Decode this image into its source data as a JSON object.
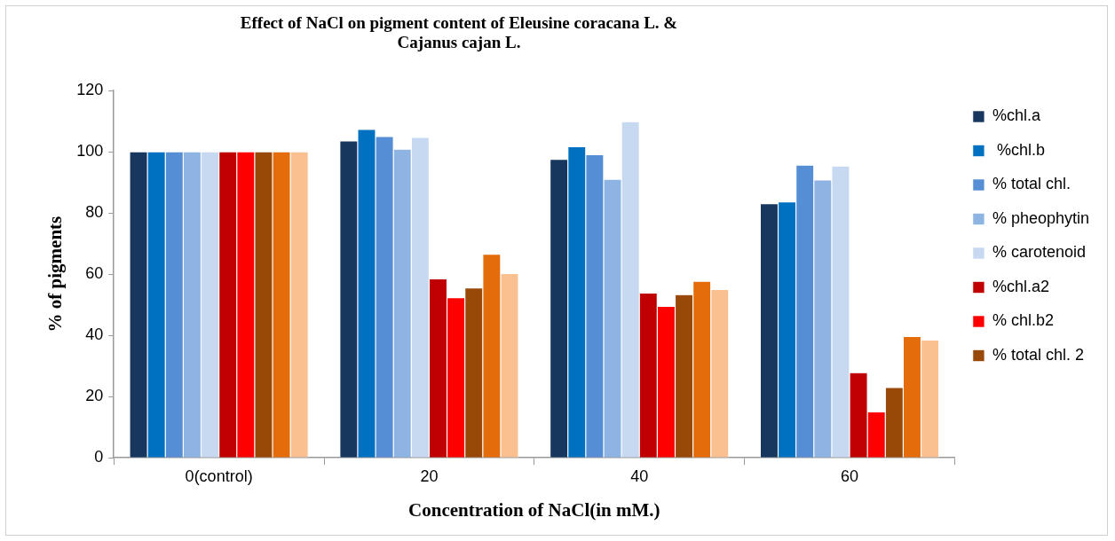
{
  "chart_data": {
    "type": "bar",
    "title": "Effect of NaCl on pigment content of Eleusine coracana L. & Cajanus cajan L.",
    "xlabel": "Concentration of NaCl(in mM.)",
    "ylabel": "% of pigments",
    "categories": [
      "0(control)",
      "20",
      "40",
      "60"
    ],
    "series": [
      {
        "name": "%chl.a",
        "color": "#17375e",
        "values": [
          100,
          103.5,
          97.5,
          83
        ]
      },
      {
        "name": " %chl.b",
        "color": "#0070c0",
        "values": [
          100,
          107.3,
          101.6,
          83.6
        ]
      },
      {
        "name": "% total chl.",
        "color": "#558ed5",
        "values": [
          100,
          105,
          99,
          95.6
        ]
      },
      {
        "name": "% pheophytin",
        "color": "#8eb4e3",
        "values": [
          100,
          100.8,
          91,
          90.8
        ]
      },
      {
        "name": "% carotenoid",
        "color": "#c6d9f1",
        "values": [
          100,
          104.7,
          109.8,
          95.3
        ]
      },
      {
        "name": "%chl.a2",
        "color": "#c00000",
        "values": [
          100,
          58.5,
          53.8,
          27.8
        ]
      },
      {
        "name": "% chl.b2",
        "color": "#ff0000",
        "values": [
          100,
          52.3,
          49.5,
          15
        ]
      },
      {
        "name": "% total chl. 2",
        "color": "#984807",
        "values": [
          100,
          55.5,
          53.3,
          23
        ]
      },
      {
        "color": "#e46c0a",
        "values": [
          100,
          66.5,
          57.7,
          39.6
        ]
      },
      {
        "color": "#fac090",
        "values": [
          100,
          60.2,
          55,
          38.5
        ]
      }
    ],
    "ylim": [
      0,
      120
    ],
    "yticks": [
      0,
      20,
      40,
      60,
      80,
      100,
      120
    ],
    "grid": false,
    "legend": "right"
  }
}
